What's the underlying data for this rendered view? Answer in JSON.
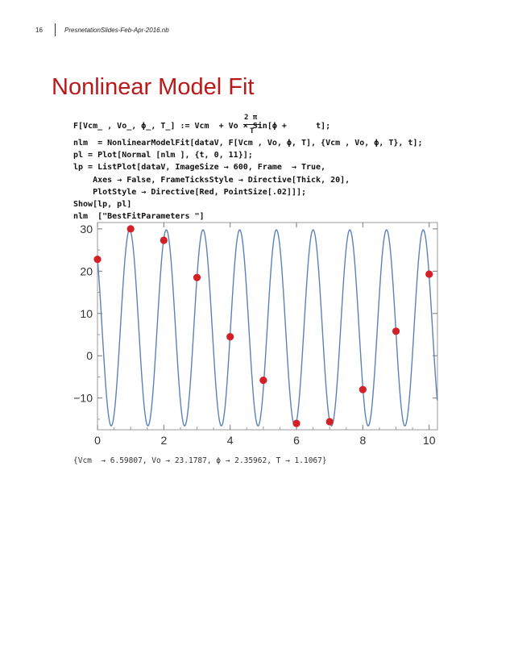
{
  "header": {
    "page_number": "16",
    "notebook_title": "PresnetationSlides-Feb-Apr-2016.nb"
  },
  "title": "Nonlinear Model Fit",
  "code": {
    "line1": "F[Vcm_ , Vo_, ϕ_, T_] := Vcm  + Vo × Sin[ϕ +      t];",
    "line1_frac_num": "2 π",
    "line1_frac_den": "T",
    "line2": "nlm  = NonlinearModelFit[dataV, F[Vcm , Vo, ϕ, T], {Vcm , Vo, ϕ, T}, t];",
    "line3": "pl = Plot[Normal [nlm ], {t, 0, 11}];",
    "line4": "lp = ListPlot[dataV, ImageSize → 600, Frame  → True,",
    "line5": "    Axes → False, FrameTicksStyle → Directive[Thick, 20],",
    "line6": "    PlotStyle → Directive[Red, PointSize[.02]]];",
    "line7": "Show[lp, pl]",
    "line8": "nlm  [\"BestFitParameters \"]"
  },
  "output": "{Vcm  → 6.59807, Vo → 23.1787, ϕ → 2.35962, T → 1.1067}",
  "chart_data": {
    "type": "scatter",
    "title": "",
    "xlabel": "",
    "ylabel": "",
    "xlim": [
      0,
      10.25
    ],
    "ylim": [
      -17.5,
      31.5
    ],
    "x_ticks": [
      0,
      2,
      4,
      6,
      8,
      10
    ],
    "x_tick_labels": [
      "0",
      "2",
      "4",
      "6",
      "8",
      "10"
    ],
    "y_ticks": [
      -10,
      0,
      10,
      20,
      30
    ],
    "y_tick_labels": [
      "−10",
      "0",
      "10",
      "20",
      "30"
    ],
    "points": {
      "name": "dataV",
      "color": "#d42027",
      "x": [
        0,
        1,
        2,
        3,
        4,
        5,
        6,
        7,
        8,
        9,
        10
      ],
      "y": [
        22.8,
        30.0,
        27.3,
        18.5,
        4.5,
        -5.8,
        -16.0,
        -15.6,
        -8.0,
        5.8,
        19.3
      ]
    },
    "fit": {
      "name": "Normal[nlm]",
      "color": "#5b82b8",
      "x_range": [
        0,
        11
      ],
      "Vcm": 6.59807,
      "Vo": 23.1787,
      "phi": 2.35962,
      "T": 1.1067
    },
    "grid": false,
    "frame": true
  }
}
